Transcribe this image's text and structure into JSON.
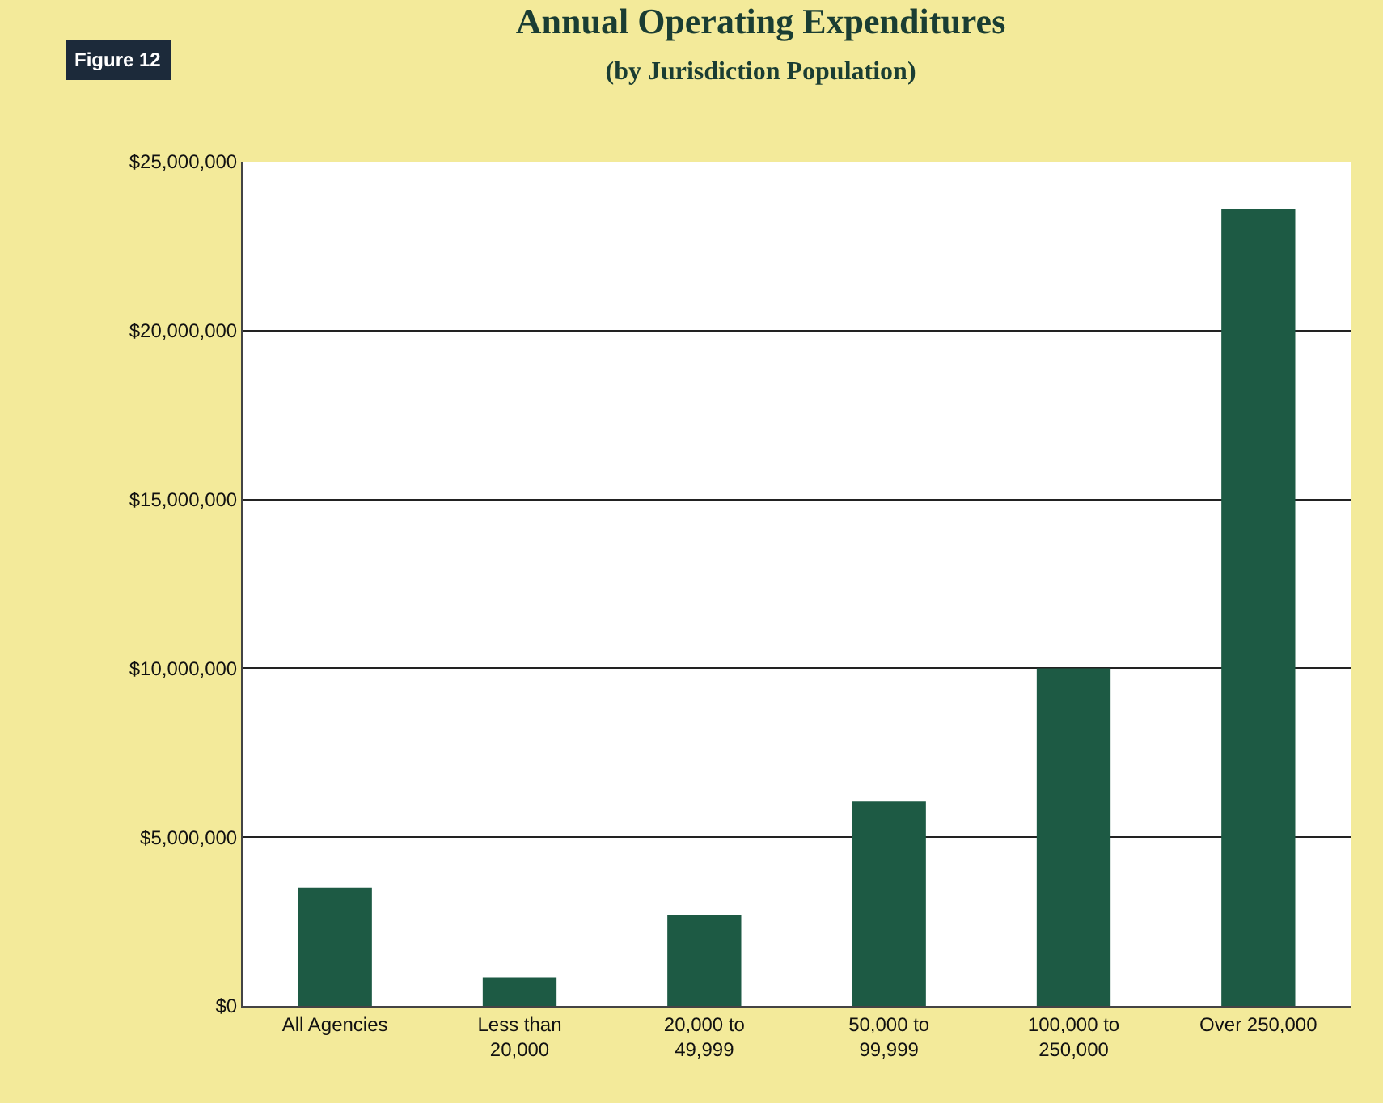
{
  "chart_data": {
    "type": "bar",
    "title": "Annual Operating Expenditures",
    "subtitle": "(by Jurisdiction Population)",
    "categories": [
      "All Agencies",
      "Less than 20,000",
      "20,000 to 49,999",
      "50,000 to 99,999",
      "100,000 to 250,000",
      "Over 250,000"
    ],
    "values": [
      3500000,
      850000,
      2700000,
      6050000,
      10000000,
      23600000
    ],
    "color": "#1d5a44",
    "ylim": [
      0,
      25000000
    ],
    "yticks": [
      {
        "value": 0,
        "label": "$0"
      },
      {
        "value": 5000000,
        "label": "$5,000,000"
      },
      {
        "value": 10000000,
        "label": "$10,000,000"
      },
      {
        "value": 15000000,
        "label": "$15,000,000"
      },
      {
        "value": 20000000,
        "label": "$20,000,000"
      },
      {
        "value": 25000000,
        "label": "$25,000,000"
      }
    ],
    "grid": "y",
    "annotations": [
      "Figure 12"
    ]
  }
}
